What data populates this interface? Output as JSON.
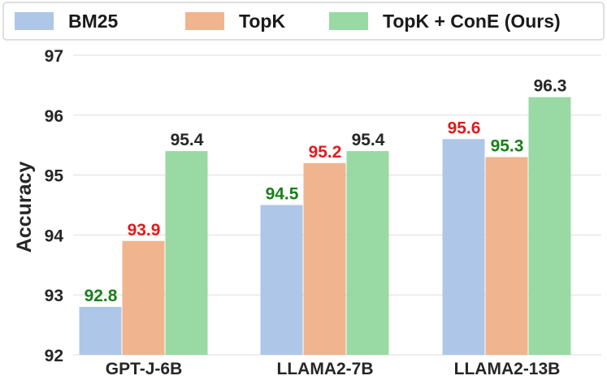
{
  "chart_data": {
    "type": "bar",
    "title": "",
    "xlabel": "",
    "ylabel": "Accuracy",
    "ylim": [
      92,
      97
    ],
    "yticks": [
      92,
      93,
      94,
      95,
      96,
      97
    ],
    "grid": true,
    "legend_position": "top",
    "categories": [
      "GPT-J-6B",
      "LLAMA2-7B",
      "LLAMA2-13B"
    ],
    "series": [
      {
        "name": "BM25",
        "color": "#aec7e8",
        "values": [
          92.8,
          94.5,
          95.6
        ],
        "labels": [
          "92.8",
          "94.5",
          "95.6"
        ],
        "label_colors": [
          "#1a7f1a",
          "#1a7f1a",
          "#e31a1c"
        ]
      },
      {
        "name": "TopK",
        "color": "#f0b48e",
        "values": [
          93.9,
          95.2,
          95.3
        ],
        "labels": [
          "93.9",
          "95.2",
          "95.3"
        ],
        "label_colors": [
          "#e31a1c",
          "#e31a1c",
          "#1a7f1a"
        ]
      },
      {
        "name": "TopK + ConE (Ours)",
        "color": "#98d9a4",
        "values": [
          95.4,
          95.4,
          96.3
        ],
        "labels": [
          "95.4",
          "95.4",
          "96.3"
        ],
        "label_colors": [
          "#262626",
          "#262626",
          "#262626"
        ]
      }
    ]
  }
}
